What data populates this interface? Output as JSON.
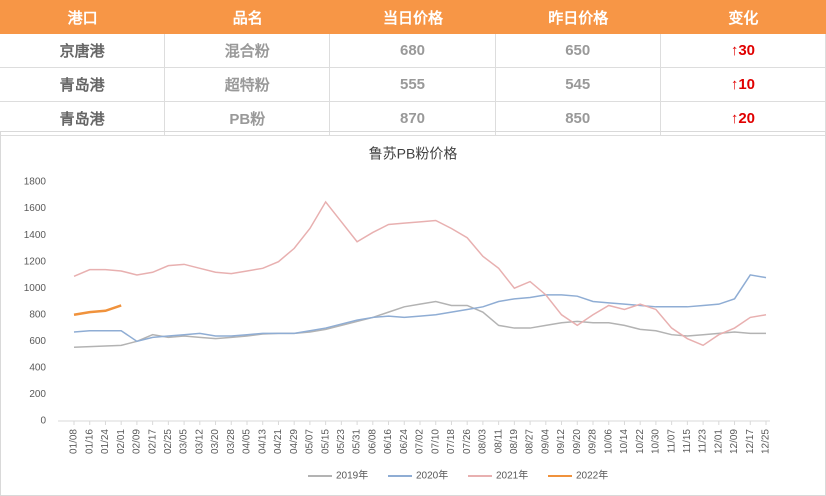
{
  "table": {
    "headers": [
      "港口",
      "品名",
      "当日价格",
      "昨日价格",
      "变化"
    ],
    "rows": [
      [
        "京唐港",
        "混合粉",
        "680",
        "650",
        "↑30"
      ],
      [
        "青岛港",
        "超特粉",
        "555",
        "545",
        "↑10"
      ],
      [
        "青岛港",
        "PB粉",
        "870",
        "850",
        "↑20"
      ]
    ]
  },
  "chart_data": {
    "type": "line",
    "title": "鲁苏PB粉价格",
    "categories": [
      "01/08",
      "01/16",
      "01/24",
      "02/01",
      "02/09",
      "02/17",
      "02/25",
      "03/05",
      "03/12",
      "03/20",
      "03/28",
      "04/05",
      "04/13",
      "04/21",
      "04/29",
      "05/07",
      "05/15",
      "05/23",
      "05/31",
      "06/08",
      "06/16",
      "06/24",
      "07/02",
      "07/10",
      "07/18",
      "07/26",
      "08/03",
      "08/11",
      "08/19",
      "08/27",
      "09/04",
      "09/12",
      "09/20",
      "09/28",
      "10/06",
      "10/14",
      "10/22",
      "10/30",
      "11/07",
      "11/15",
      "11/23",
      "12/01",
      "12/09",
      "12/17",
      "12/25"
    ],
    "series": [
      {
        "name": "2019年",
        "color": "#b3b3b3",
        "values": [
          555,
          560,
          565,
          570,
          600,
          650,
          630,
          640,
          630,
          620,
          630,
          640,
          655,
          660,
          660,
          670,
          690,
          720,
          750,
          780,
          820,
          860,
          880,
          900,
          870,
          870,
          820,
          720,
          700,
          700,
          720,
          740,
          750,
          740,
          740,
          720,
          690,
          680,
          650,
          640,
          650,
          660,
          670,
          660,
          660
        ]
      },
      {
        "name": "2020年",
        "color": "#8fadd4",
        "values": [
          670,
          680,
          680,
          680,
          600,
          630,
          640,
          650,
          660,
          640,
          640,
          650,
          660,
          660,
          660,
          680,
          700,
          730,
          760,
          780,
          790,
          780,
          790,
          800,
          820,
          840,
          860,
          900,
          920,
          930,
          950,
          950,
          940,
          900,
          890,
          880,
          870,
          860,
          860,
          860,
          870,
          880,
          920,
          1100,
          1080
        ]
      },
      {
        "name": "2021年",
        "color": "#e8b0b0",
        "values": [
          1090,
          1140,
          1140,
          1130,
          1100,
          1120,
          1170,
          1180,
          1150,
          1120,
          1110,
          1130,
          1150,
          1200,
          1300,
          1450,
          1650,
          1500,
          1350,
          1420,
          1480,
          1490,
          1500,
          1510,
          1450,
          1380,
          1240,
          1150,
          1000,
          1050,
          950,
          800,
          720,
          800,
          870,
          840,
          880,
          840,
          700,
          620,
          570,
          650,
          700,
          780,
          800
        ]
      },
      {
        "name": "2022年",
        "color": "#f0923c",
        "values": [
          800,
          820,
          830,
          870,
          null,
          null,
          null,
          null,
          null,
          null,
          null,
          null,
          null,
          null,
          null,
          null,
          null,
          null,
          null,
          null,
          null,
          null,
          null,
          null,
          null,
          null,
          null,
          null,
          null,
          null,
          null,
          null,
          null,
          null,
          null,
          null,
          null,
          null,
          null,
          null,
          null,
          null,
          null,
          null,
          null
        ]
      }
    ],
    "ylim": [
      0,
      1800
    ],
    "yticks": [
      0,
      200,
      400,
      600,
      800,
      1000,
      1200,
      1400,
      1600,
      1800
    ],
    "legend": "bottom"
  }
}
